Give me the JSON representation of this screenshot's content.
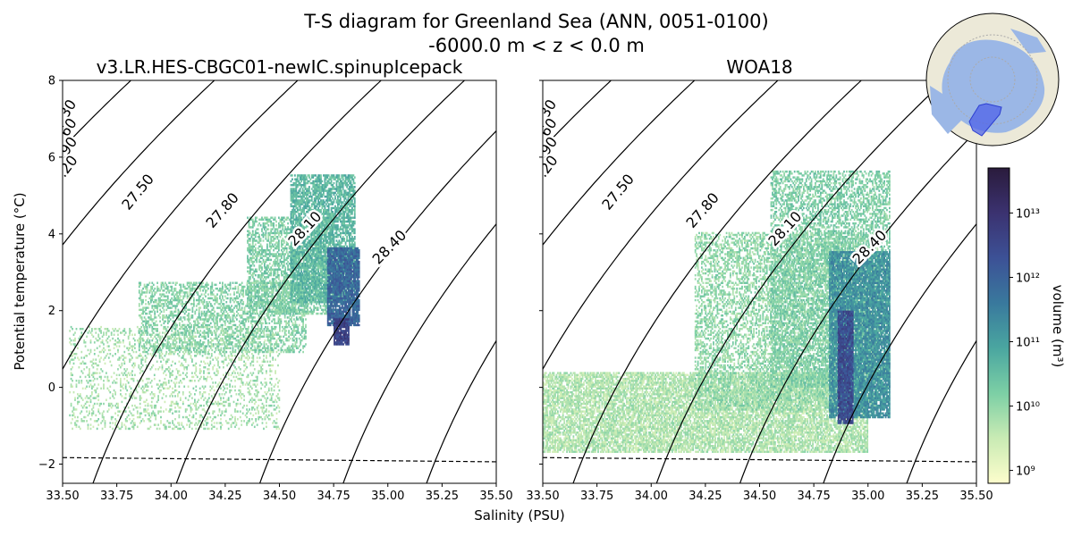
{
  "figure": {
    "title_line1": "T-S diagram for Greenland Sea (ANN, 0051-0100)",
    "title_line2": "-6000.0 m < z < 0.0 m",
    "xlabel": "Salinity (PSU)",
    "ylabel": "Potential temperature (°C)",
    "colorbar_label": "volume (m³)"
  },
  "chart_data": {
    "type": "heatmap",
    "shared": {
      "xlim": [
        33.5,
        35.5
      ],
      "ylim": [
        -2.5,
        8
      ],
      "xticks": [
        "33.50",
        "33.75",
        "34.00",
        "34.25",
        "34.50",
        "34.75",
        "35.00",
        "35.25",
        "35.50"
      ],
      "yticks": [
        "−2",
        "0",
        "2",
        "4",
        "6",
        "8"
      ],
      "freezing_line": [
        [
          33.5,
          -1.83
        ],
        [
          35.5,
          -1.94
        ]
      ],
      "density_contours": [
        "26.30",
        "26.60",
        "26.90",
        "27.20",
        "27.50",
        "27.80",
        "28.10",
        "28.40"
      ],
      "colormap": [
        "#fdfdcc",
        "#c9ebb4",
        "#7ccfa5",
        "#4aa6a0",
        "#39799d",
        "#3c5196",
        "#3b3270",
        "#2a1b3c"
      ],
      "colorbar_ticks": [
        "10⁹",
        "10¹⁰",
        "10¹¹",
        "10¹²",
        "10¹³"
      ],
      "colorbar_log_range": [
        8.8,
        13.7
      ]
    },
    "panels": [
      {
        "title": "v3.LR.HES-CBGC01-newIC.spinupIcepack",
        "regions": [
          {
            "s": [
              33.53,
              34.5
            ],
            "t": [
              -1.1,
              1.6
            ],
            "logv": 9.8,
            "density": 0.22
          },
          {
            "s": [
              33.85,
              34.62
            ],
            "t": [
              0.9,
              2.7
            ],
            "logv": 10.1,
            "density": 0.45
          },
          {
            "s": [
              34.35,
              34.75
            ],
            "t": [
              1.9,
              4.4
            ],
            "logv": 10.2,
            "density": 0.55
          },
          {
            "s": [
              34.55,
              34.85
            ],
            "t": [
              2.2,
              5.5
            ],
            "logv": 10.6,
            "density": 0.72
          },
          {
            "s": [
              34.72,
              34.87
            ],
            "t": [
              1.6,
              3.6
            ],
            "logv": 11.9,
            "density": 0.9
          },
          {
            "s": [
              34.75,
              34.82
            ],
            "t": [
              1.1,
              1.8
            ],
            "logv": 12.6,
            "density": 0.9
          }
        ]
      },
      {
        "title": "WOA18",
        "regions": [
          {
            "s": [
              33.5,
              35.0
            ],
            "t": [
              -1.7,
              0.4
            ],
            "logv": 9.7,
            "density": 0.75
          },
          {
            "s": [
              34.2,
              35.05
            ],
            "t": [
              -0.6,
              4.0
            ],
            "logv": 10.0,
            "density": 0.45
          },
          {
            "s": [
              34.55,
              35.1
            ],
            "t": [
              0.0,
              5.6
            ],
            "logv": 10.2,
            "density": 0.5
          },
          {
            "s": [
              34.82,
              35.1
            ],
            "t": [
              -0.8,
              3.5
            ],
            "logv": 11.2,
            "density": 0.85
          },
          {
            "s": [
              34.86,
              34.93
            ],
            "t": [
              -0.95,
              2.0
            ],
            "logv": 12.4,
            "density": 0.9
          }
        ]
      }
    ]
  }
}
